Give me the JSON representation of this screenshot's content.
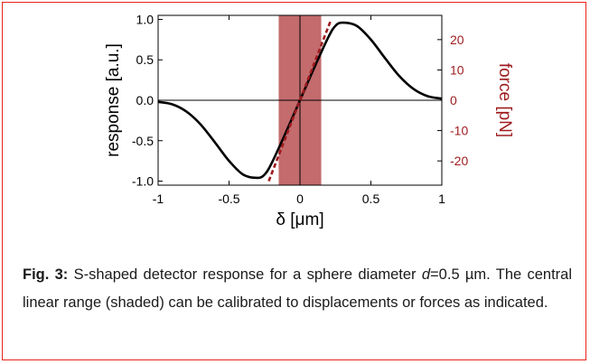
{
  "chart_data": {
    "type": "line",
    "xlabel": "δ [μm]",
    "ylabel": "response [a.u.]",
    "y2label": "force [pN]",
    "xlim": [
      -1,
      1
    ],
    "ylim": [
      -1.05,
      1.05
    ],
    "y2lim": [
      -28,
      28
    ],
    "x_ticks": [
      "-1",
      "-0.5",
      "0",
      "0.5",
      "1"
    ],
    "y_ticks": [
      "1.0",
      "0.5",
      "0.0",
      "-0.5",
      "-1.0"
    ],
    "y2_ticks": [
      "20",
      "10",
      "0",
      "-10",
      "-20"
    ],
    "shaded_region": {
      "x": [
        -0.15,
        0.15
      ],
      "color": "#c36b6d"
    },
    "series": [
      {
        "style": "solid",
        "color": "#000000",
        "x": [
          -1.0,
          -0.9,
          -0.8,
          -0.7,
          -0.6,
          -0.5,
          -0.4,
          -0.3,
          -0.25,
          -0.2,
          -0.1,
          0.0,
          0.1,
          0.2,
          0.25,
          0.3,
          0.4,
          0.5,
          0.6,
          0.7,
          0.8,
          0.9,
          1.0
        ],
        "y": [
          -0.02,
          -0.05,
          -0.14,
          -0.3,
          -0.52,
          -0.75,
          -0.92,
          -0.96,
          -0.92,
          -0.78,
          -0.4,
          0.0,
          0.4,
          0.78,
          0.92,
          0.96,
          0.92,
          0.75,
          0.52,
          0.3,
          0.14,
          0.05,
          0.02
        ]
      },
      {
        "style": "dashed",
        "color": "#9e1b1e",
        "x": [
          -0.22,
          0.22
        ],
        "y": [
          -1.0,
          1.0
        ]
      }
    ],
    "colors": {
      "curve": "#000000",
      "fit": "#9e1b1e",
      "axis_right": "#9e1b1e",
      "frame": "#e8231c"
    }
  },
  "caption": {
    "label": "Fig. 3:",
    "text1": " S-shaped detector response for a sphere diameter ",
    "var": "d",
    "text2": "=0.5 µm. The central linear range (shaded) can be calibrated to displacements or forces as indicated."
  }
}
